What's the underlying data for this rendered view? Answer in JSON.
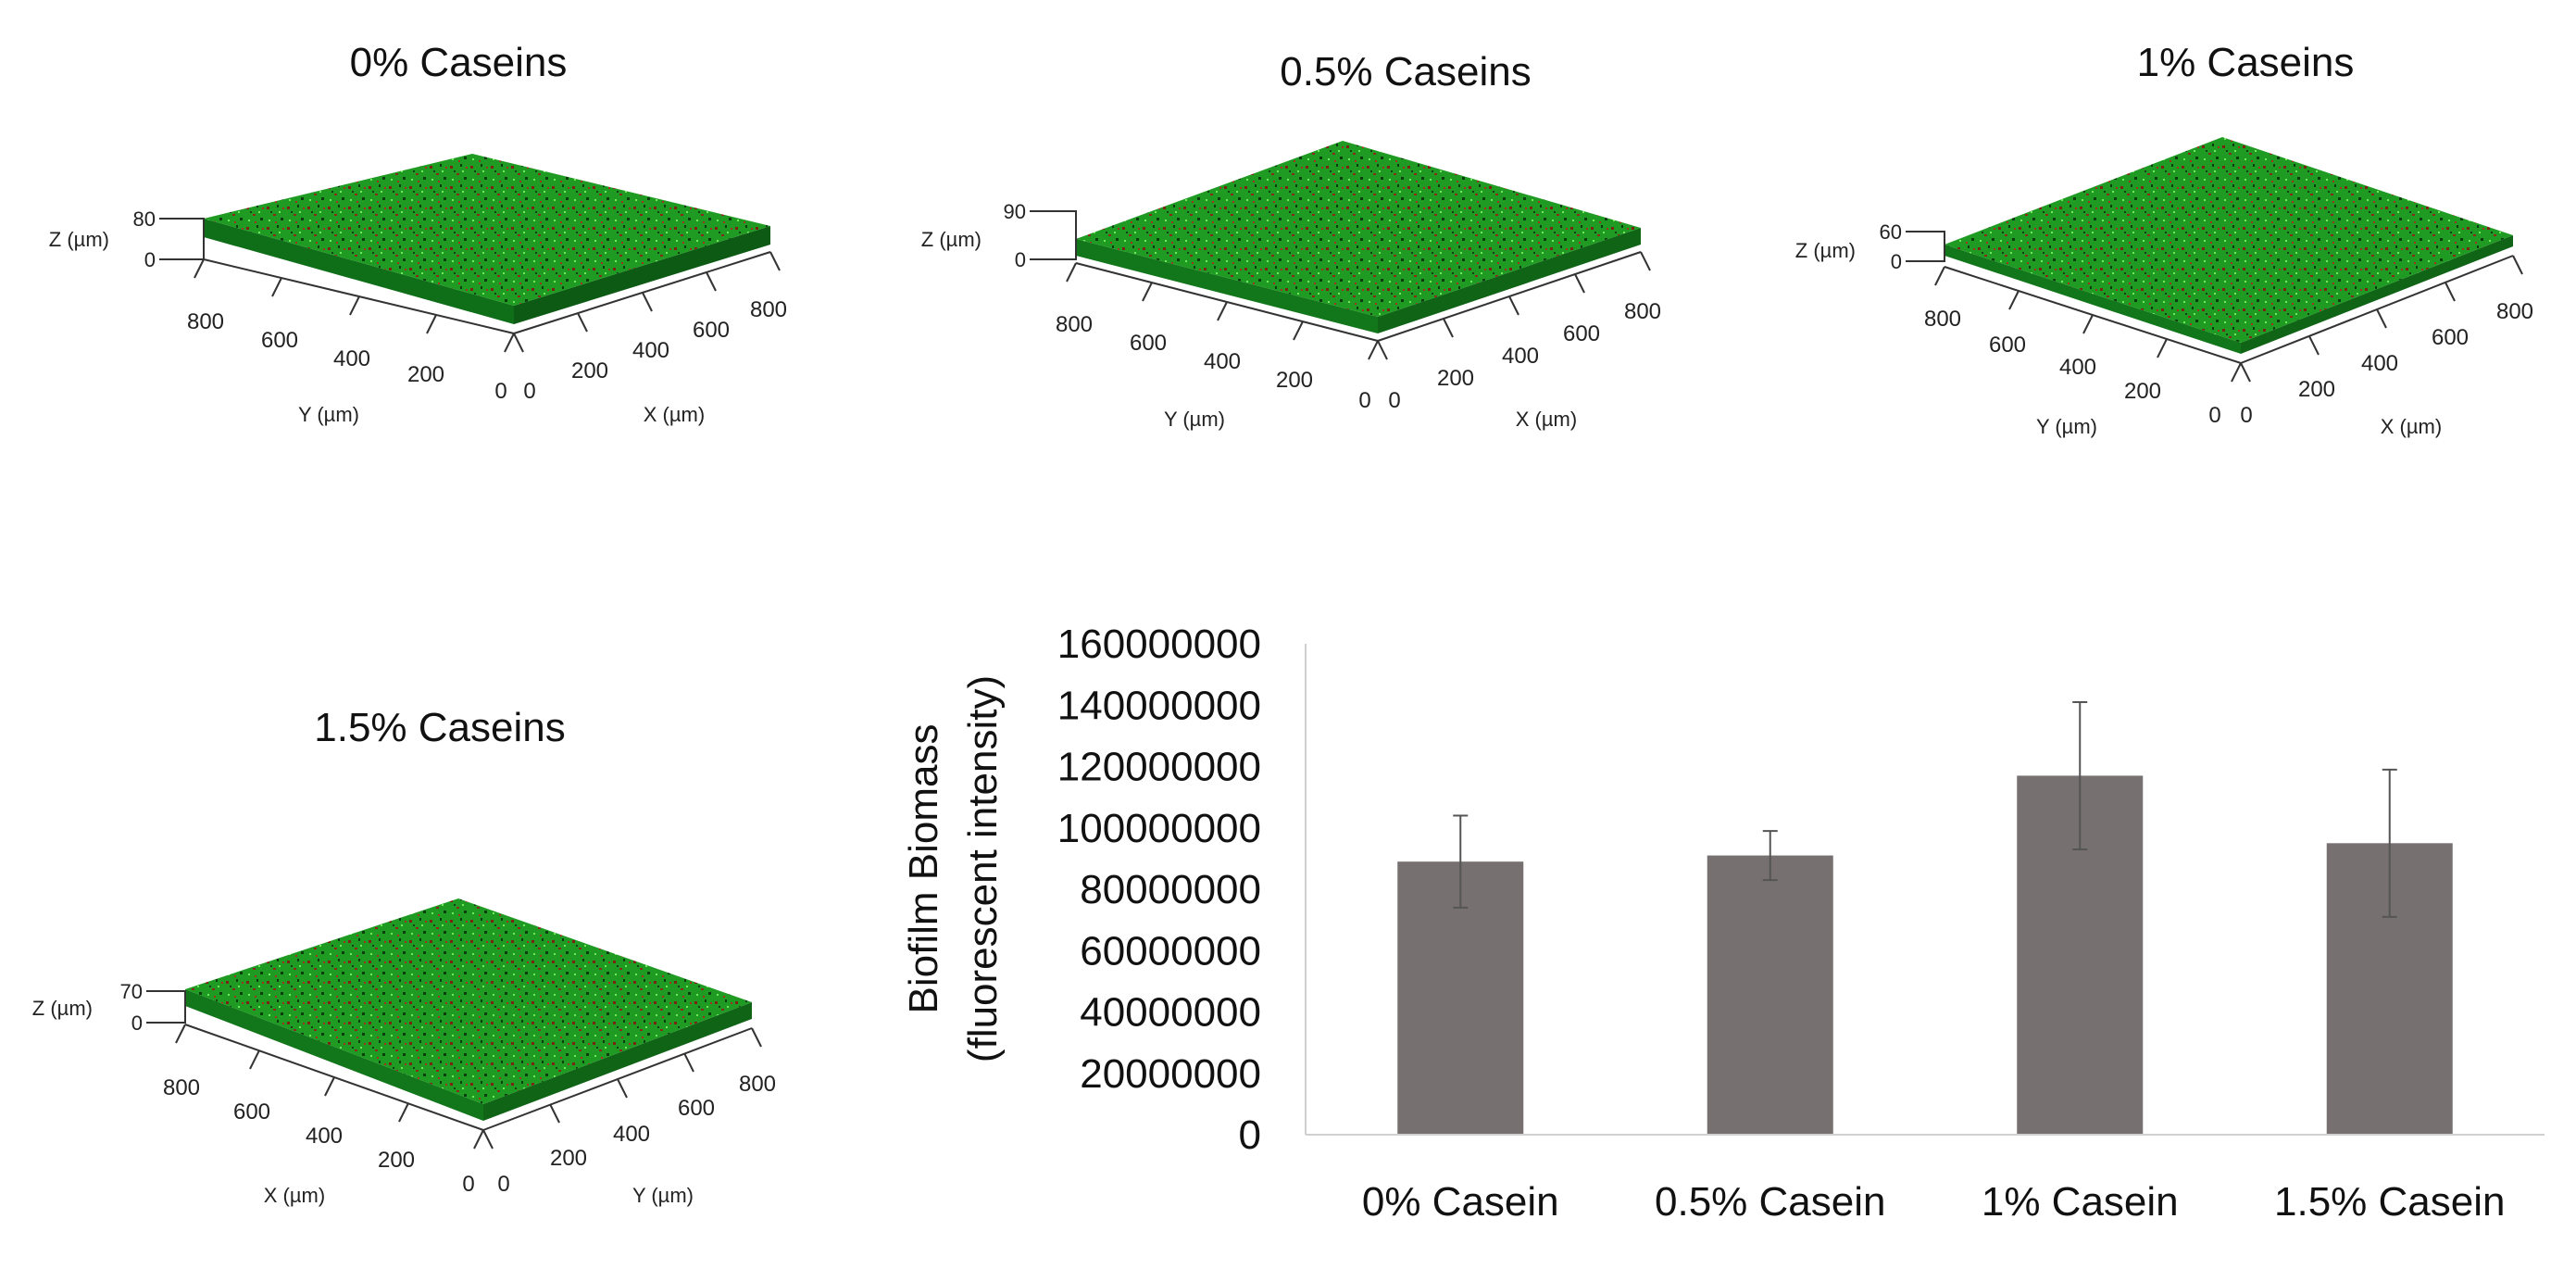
{
  "panels": [
    {
      "title": "0% Caseins",
      "z_axis_label": "Z (µm)",
      "z_max": "80",
      "z_zero": "0",
      "left_axis_label": "Y (µm)",
      "left_ticks": [
        "800",
        "600",
        "400",
        "200",
        "0"
      ],
      "right_axis_label": "X (µm)",
      "right_ticks": [
        "0",
        "200",
        "400",
        "600",
        "800"
      ]
    },
    {
      "title": "0.5% Caseins",
      "z_axis_label": "Z (µm)",
      "z_max": "90",
      "z_zero": "0",
      "left_axis_label": "Y (µm)",
      "left_ticks": [
        "800",
        "600",
        "400",
        "200",
        "0"
      ],
      "right_axis_label": "X (µm)",
      "right_ticks": [
        "0",
        "200",
        "400",
        "600",
        "800"
      ]
    },
    {
      "title": "1% Caseins",
      "z_axis_label": "Z (µm)",
      "z_max": "60",
      "z_zero": "0",
      "left_axis_label": "Y (µm)",
      "left_ticks": [
        "800",
        "600",
        "400",
        "200",
        "0"
      ],
      "right_axis_label": "X (µm)",
      "right_ticks": [
        "0",
        "200",
        "400",
        "600",
        "800"
      ]
    },
    {
      "title": "1.5% Caseins",
      "z_axis_label": "Z (µm)",
      "z_max": "70",
      "z_zero": "0",
      "left_axis_label": "X (µm)",
      "left_ticks": [
        "800",
        "600",
        "400",
        "200",
        "0"
      ],
      "right_axis_label": "Y (µm)",
      "right_ticks": [
        "0",
        "200",
        "400",
        "600",
        "800"
      ]
    }
  ],
  "biofilm_colors": {
    "top": "#22b022",
    "side": "#0f6e18",
    "speckle": "#8a2a1a",
    "highlight": "#7dff6a"
  },
  "chart_data": {
    "type": "bar",
    "categories": [
      "0% Casein",
      "0.5% Casein",
      "1% Casein",
      "1.5% Casein"
    ],
    "values": [
      89000000,
      91000000,
      117000000,
      95000000
    ],
    "error": [
      15000000,
      8000000,
      24000000,
      24000000
    ],
    "title": "",
    "ylabel_line1": "Biofilm Biomass",
    "ylabel_line2": "(fluorescent intensity)",
    "ylim": [
      0,
      160000000
    ],
    "yticks": [
      0,
      20000000,
      40000000,
      60000000,
      80000000,
      100000000,
      120000000,
      140000000,
      160000000
    ],
    "ytick_labels": [
      "0",
      "20000000",
      "40000000",
      "60000000",
      "80000000",
      "100000000",
      "120000000",
      "140000000",
      "160000000"
    ],
    "bar_color": "#777070",
    "grid": false,
    "legend": "none"
  }
}
